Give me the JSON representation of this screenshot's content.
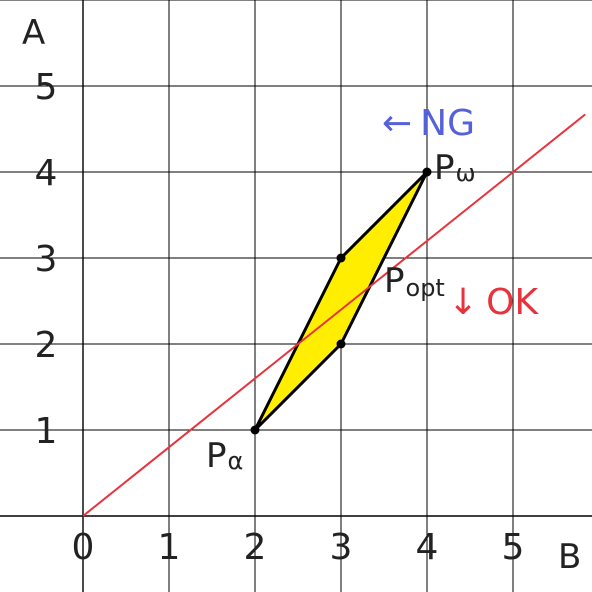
{
  "chart_data": {
    "type": "scatter",
    "xlabel": "B",
    "ylabel": "A",
    "xlim": [
      0,
      5.8
    ],
    "ylim": [
      0,
      6
    ],
    "x_ticks": [
      "0",
      "1",
      "2",
      "3",
      "4",
      "5"
    ],
    "y_ticks": [
      "1",
      "2",
      "3",
      "4",
      "5"
    ],
    "grid": true,
    "region": {
      "fill": "#ffee00",
      "vertices": [
        [
          2,
          1
        ],
        [
          3,
          2
        ],
        [
          4,
          4
        ],
        [
          3,
          3
        ]
      ]
    },
    "line": {
      "color": "#e8323c",
      "from": [
        0,
        0
      ],
      "to": [
        5.84,
        4.67
      ]
    },
    "points": [
      {
        "x": 2,
        "y": 1,
        "label": "P",
        "sub": "α"
      },
      {
        "x": 3,
        "y": 2,
        "label": "",
        "sub": ""
      },
      {
        "x": 3,
        "y": 3,
        "label": "",
        "sub": ""
      },
      {
        "x": 4,
        "y": 4,
        "label": "P",
        "sub": "ω"
      }
    ],
    "annotations": {
      "p_opt": {
        "label": "P",
        "sub": "opt"
      },
      "ng": {
        "arrow": "←",
        "text": "NG",
        "color": "#5661d9"
      },
      "ok": {
        "arrow": "↓",
        "text": "OK",
        "color": "#e8323c"
      }
    }
  }
}
